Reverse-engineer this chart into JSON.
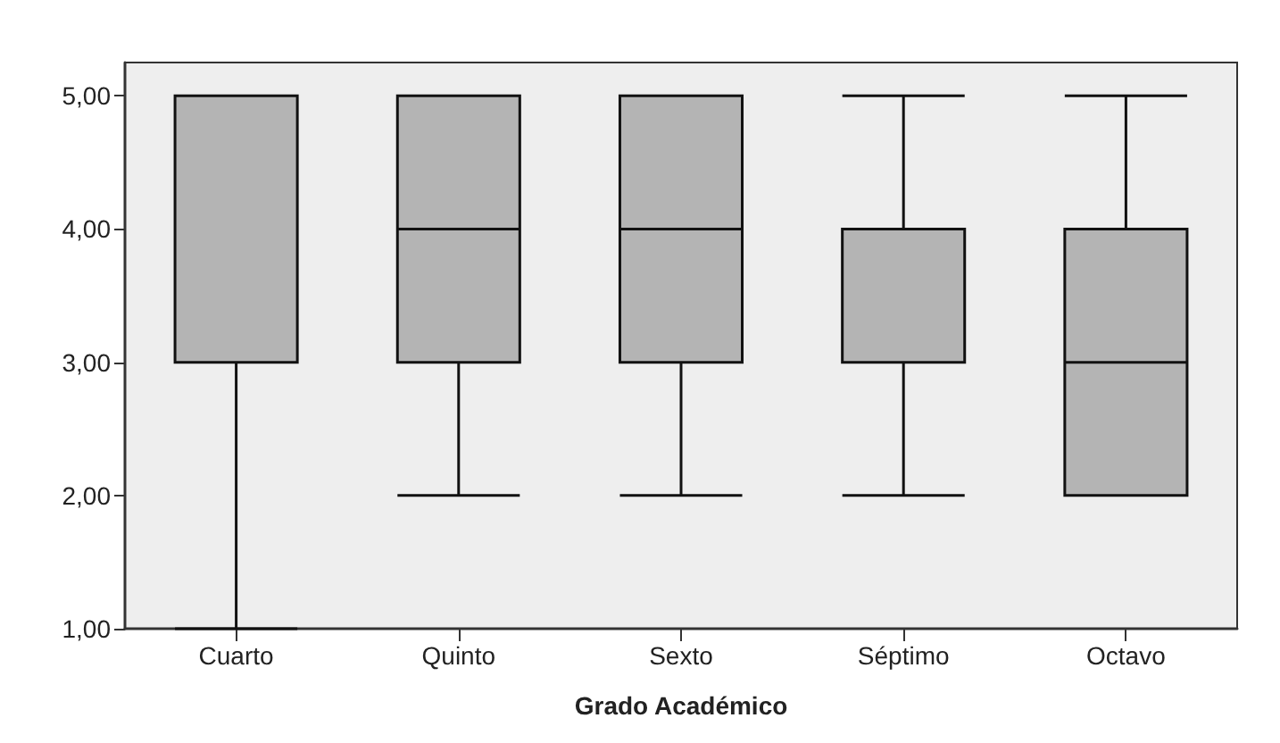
{
  "chart_data": {
    "type": "box",
    "xlabel": "Grado Académico",
    "categories": [
      "Cuarto",
      "Quinto",
      "Sexto",
      "Séptimo",
      "Octavo"
    ],
    "boxes": [
      {
        "low": 1,
        "q1": 3,
        "median": 5,
        "q3": 5,
        "high": 5
      },
      {
        "low": 2,
        "q1": 3,
        "median": 4,
        "q3": 5,
        "high": 5
      },
      {
        "low": 2,
        "q1": 3,
        "median": 4,
        "q3": 5,
        "high": 5
      },
      {
        "low": 2,
        "q1": 3,
        "median": 4,
        "q3": 4,
        "high": 5
      },
      {
        "low": 2,
        "q1": 2,
        "median": 3,
        "q3": 4,
        "high": 5
      }
    ],
    "color": "#b4b4b4",
    "ylim": [
      1,
      5.25
    ],
    "yticks": [
      {
        "value": 1,
        "label": "1,00"
      },
      {
        "value": 2,
        "label": "2,00"
      },
      {
        "value": 3,
        "label": "3,00"
      },
      {
        "value": 4,
        "label": "4,00"
      },
      {
        "value": 5,
        "label": "5,00"
      }
    ],
    "grid": false
  }
}
